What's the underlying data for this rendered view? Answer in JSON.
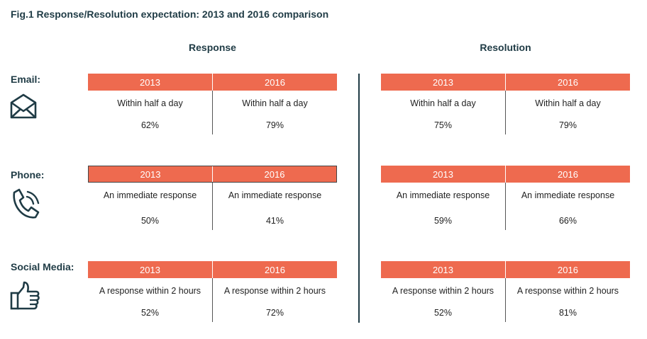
{
  "title": "Fig.1 Response/Resolution expectation: 2013 and 2016 comparison",
  "sections": {
    "response": "Response",
    "resolution": "Resolution"
  },
  "icons": {
    "email": "envelope-icon",
    "phone": "phone-icon",
    "social": "thumbs-up-icon"
  },
  "colors": {
    "header_bg": "#ee6a4f",
    "text_dark": "#1f3b45"
  },
  "chart_data": {
    "type": "table",
    "title": "Fig.1 Response/Resolution expectation: 2013 and 2016 comparison",
    "years": [
      "2013",
      "2016"
    ],
    "channels": [
      {
        "label": "Email:",
        "response": {
          "2013": {
            "expectation": "Within half a day",
            "value": "62%"
          },
          "2016": {
            "expectation": "Within half a day",
            "value": "79%"
          }
        },
        "resolution": {
          "2013": {
            "expectation": "Within half a day",
            "value": "75%"
          },
          "2016": {
            "expectation": "Within half a day",
            "value": "79%"
          }
        }
      },
      {
        "label": "Phone:",
        "response": {
          "2013": {
            "expectation": "An immediate response",
            "value": "50%"
          },
          "2016": {
            "expectation": "An immediate response",
            "value": "41%"
          }
        },
        "resolution": {
          "2013": {
            "expectation": "An immediate response",
            "value": "59%"
          },
          "2016": {
            "expectation": "An immediate response",
            "value": "66%"
          }
        }
      },
      {
        "label": "Social Media:",
        "response": {
          "2013": {
            "expectation": "A response within 2 hours",
            "value": "52%"
          },
          "2016": {
            "expectation": "A response within 2 hours",
            "value": "72%"
          }
        },
        "resolution": {
          "2013": {
            "expectation": "A response within 2 hours",
            "value": "52%"
          },
          "2016": {
            "expectation": "A response within 2 hours",
            "value": "81%"
          }
        }
      }
    ]
  }
}
